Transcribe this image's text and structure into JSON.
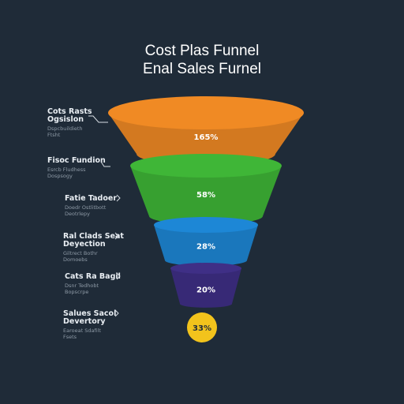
{
  "title": "Cost Plas Funnel",
  "subtitle": "Enal Sales Furnel",
  "chart_data": {
    "type": "funnel",
    "stages": [
      {
        "label": "Cots Rasts\nOgsislon",
        "sublabel": "Dspcbuildieth\nFtsht",
        "value_label": "165%",
        "color": "#f08a24",
        "value_color": "#ffffff"
      },
      {
        "label": "Fisoc Fundion",
        "sublabel": "Esrcb Fludhess\nDospsogy",
        "value_label": "58%",
        "color": "#3fb637",
        "value_color": "#ffffff"
      },
      {
        "label": "Fatie Tadoer",
        "sublabel": "Doedr Ostlitbott\nDeotrlepy",
        "value_label": "28%",
        "color": "#1d87d6",
        "value_color": "#ffffff"
      },
      {
        "label": "Ral Clads Seat\nDeyection",
        "sublabel": "Giltrect Bothr\nDomoebs",
        "value_label": "20%",
        "color": "#3f2f86",
        "value_color": "#ffffff"
      },
      {
        "label": "Cats Ra Bagil",
        "sublabel": "Dsnr Tedhobt\nBopscrpe",
        "value_label": "33%",
        "color": "#f2c31c",
        "value_color": "#1f2b38"
      },
      {
        "label": "Salues Sacol\nDevertory",
        "sublabel": "Earoeat Sdafilt\nFsets",
        "value_label": "",
        "color": "",
        "value_color": ""
      }
    ]
  }
}
